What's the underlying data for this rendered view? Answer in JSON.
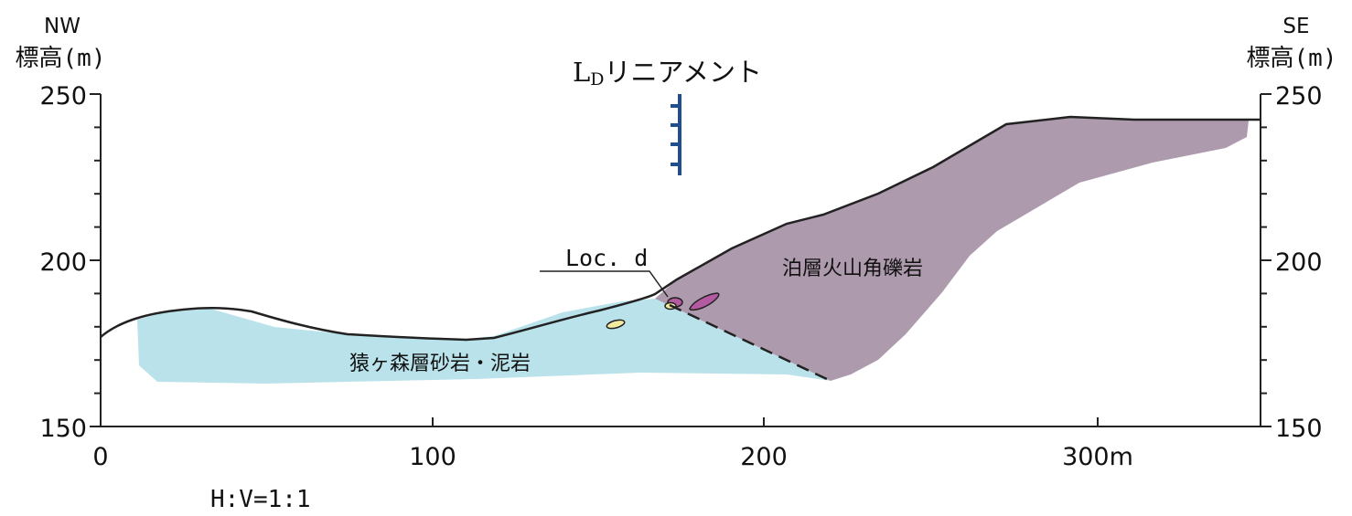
{
  "labels": {
    "left_direction": "NW",
    "right_direction": "SE",
    "left_axis_title": "標高(m)",
    "right_axis_title": "標高(m)",
    "lineament": "リニアメント",
    "lineament_prefix": "L",
    "lineament_subscript": "D",
    "locality": "Loc. d",
    "unit_upper": "泊層火山角礫岩",
    "unit_lower": "猿ヶ森層砂岩・泥岩",
    "scale": "H:V=1:1"
  },
  "axes": {
    "x_ticks": [
      "0",
      "100",
      "200",
      "300m"
    ],
    "y_left_ticks": [
      "250",
      "200",
      "150"
    ],
    "y_right_ticks": [
      "250",
      "200",
      "150"
    ]
  },
  "colors": {
    "sandstone_mudstone": "#b9e2ea",
    "volcanic_breccia": "#ad9aad",
    "lineament_symbol": "#1f4f8f",
    "small_pink_body": "#b45aa0",
    "small_yellow_body": "#f3eaa2"
  }
}
